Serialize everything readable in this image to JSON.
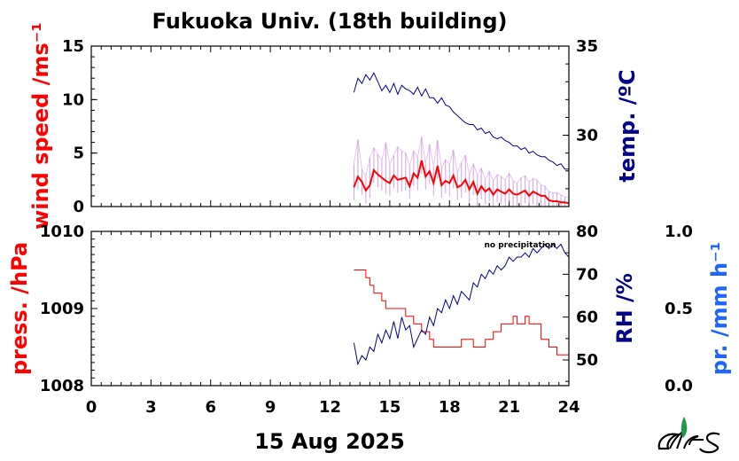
{
  "chart_data": [
    {
      "type": "line",
      "title": "Fukuoka Univ. (18th building)",
      "xlim": [
        0,
        24
      ],
      "x_ticks": [
        "0",
        "3",
        "6",
        "9",
        "12",
        "15",
        "18",
        "21",
        "24"
      ],
      "date_label": "15 Aug 2025",
      "y_left": {
        "label": "wind speed /ms⁻¹",
        "color": "#ff0000",
        "lim": [
          0,
          15
        ],
        "ticks": [
          "0",
          "5",
          "10",
          "15"
        ]
      },
      "y_right": {
        "label": "temp. /ºC",
        "color": "#00008b",
        "lim": [
          26,
          35
        ],
        "ticks": [
          "30",
          "35"
        ]
      },
      "series": [
        {
          "name": "wind speed",
          "axis": "left",
          "color": "#ff0000",
          "x": [
            13.2,
            13.4,
            13.6,
            13.8,
            14.0,
            14.2,
            14.4,
            14.6,
            14.8,
            15.0,
            15.2,
            15.4,
            15.6,
            15.8,
            16.0,
            16.2,
            16.4,
            16.6,
            16.8,
            17.0,
            17.2,
            17.4,
            17.6,
            17.8,
            18.0,
            18.2,
            18.4,
            18.6,
            18.8,
            19.0,
            19.2,
            19.4,
            19.6,
            19.8,
            20.0,
            20.2,
            20.4,
            20.6,
            20.8,
            21.0,
            21.2,
            21.4,
            21.6,
            21.8,
            22.0,
            22.2,
            22.4,
            22.6,
            22.8,
            23.0,
            23.2,
            23.4,
            23.6,
            23.8,
            24.0
          ],
          "y": [
            1.8,
            2.8,
            2.3,
            1.5,
            2.0,
            3.4,
            3.0,
            2.7,
            2.4,
            2.2,
            2.9,
            2.5,
            2.6,
            2.7,
            1.9,
            3.1,
            2.7,
            4.3,
            2.8,
            3.3,
            2.2,
            3.8,
            2.0,
            2.4,
            2.2,
            2.9,
            1.8,
            2.0,
            2.5,
            1.6,
            2.3,
            1.2,
            1.9,
            1.4,
            1.7,
            1.1,
            1.6,
            1.4,
            1.2,
            1.6,
            1.2,
            1.1,
            1.3,
            1.5,
            1.0,
            1.4,
            1.2,
            1.0,
            1.0,
            0.6,
            0.5,
            0.5,
            0.4,
            0.4,
            0.3
          ]
        },
        {
          "name": "wind gust",
          "axis": "left",
          "color": "#cc88dd",
          "x": [
            13.2,
            13.4,
            13.6,
            13.8,
            14.0,
            14.2,
            14.4,
            14.6,
            14.8,
            15.0,
            15.2,
            15.4,
            15.6,
            15.8,
            16.0,
            16.2,
            16.4,
            16.6,
            16.8,
            17.0,
            17.2,
            17.4,
            17.6,
            17.8,
            18.0,
            18.2,
            18.4,
            18.6,
            18.8,
            19.0,
            19.2,
            19.4,
            19.6,
            19.8,
            20.0,
            20.2,
            20.4,
            20.6,
            20.8,
            21.0,
            21.2,
            21.4,
            21.6,
            21.8,
            22.0,
            22.2,
            22.4,
            22.6,
            22.8,
            23.0,
            23.2,
            23.4,
            23.6,
            23.8,
            24.0
          ],
          "y": [
            4.0,
            6.3,
            3.5,
            2.8,
            4.6,
            5.5,
            4.9,
            4.3,
            6.0,
            3.9,
            4.8,
            5.6,
            5.2,
            5.0,
            3.8,
            5.2,
            4.6,
            6.5,
            4.0,
            5.8,
            3.8,
            6.2,
            3.6,
            4.4,
            3.9,
            5.3,
            3.2,
            4.1,
            4.8,
            3.0,
            4.0,
            2.9,
            3.6,
            2.5,
            3.3,
            2.4,
            3.0,
            2.8,
            2.5,
            3.1,
            2.4,
            2.2,
            2.7,
            2.9,
            2.3,
            2.6,
            2.5,
            2.0,
            1.9,
            1.4,
            1.3,
            1.3,
            1.1,
            0.9,
            0.8
          ]
        },
        {
          "name": "temperature",
          "axis": "right",
          "color": "#00008b",
          "x": [
            13.2,
            13.4,
            13.6,
            13.8,
            14.0,
            14.2,
            14.4,
            14.6,
            14.8,
            15.0,
            15.2,
            15.4,
            15.6,
            15.8,
            16.0,
            16.2,
            16.4,
            16.6,
            16.8,
            17.0,
            17.2,
            17.4,
            17.6,
            17.8,
            18.0,
            18.2,
            18.4,
            18.6,
            18.8,
            19.0,
            19.2,
            19.4,
            19.6,
            19.8,
            20.0,
            20.2,
            20.4,
            20.6,
            20.8,
            21.0,
            21.2,
            21.4,
            21.6,
            21.8,
            22.0,
            22.2,
            22.4,
            22.6,
            22.8,
            23.0,
            23.2,
            23.4,
            23.6,
            23.8,
            24.0
          ],
          "y": [
            32.4,
            33.2,
            32.9,
            33.4,
            33.1,
            33.5,
            33.0,
            32.5,
            32.8,
            32.4,
            32.9,
            32.3,
            32.8,
            32.6,
            32.5,
            32.3,
            32.7,
            32.2,
            32.6,
            32.1,
            32.1,
            31.8,
            32.1,
            31.7,
            31.6,
            31.3,
            31.1,
            30.9,
            30.7,
            30.6,
            30.6,
            30.3,
            30.4,
            30.1,
            30.2,
            29.9,
            29.8,
            29.9,
            29.7,
            29.6,
            29.4,
            29.4,
            29.2,
            29.3,
            29.0,
            29.1,
            28.9,
            28.8,
            28.8,
            28.6,
            28.5,
            28.3,
            28.4,
            28.1,
            28.1
          ]
        }
      ]
    },
    {
      "type": "line",
      "xlim": [
        0,
        24
      ],
      "annotation": "no precipitation",
      "y_left": {
        "label": "press. /hPa",
        "color": "#ff0000",
        "lim": [
          1008,
          1010
        ],
        "ticks": [
          "1008",
          "1009",
          "1010"
        ]
      },
      "y_right": {
        "label": "RH /%",
        "color": "#00008b",
        "lim": [
          44,
          80
        ],
        "ticks": [
          "50",
          "60",
          "70",
          "80"
        ]
      },
      "y_right2": {
        "label": "pr. /mm h⁻¹",
        "color": "#1e64ff",
        "lim": [
          0.0,
          1.0
        ],
        "ticks": [
          "0.0",
          "0.5",
          "1.0"
        ]
      },
      "series": [
        {
          "name": "pressure",
          "axis": "left",
          "color": "#ff0000",
          "x": [
            13.2,
            13.6,
            13.8,
            14.0,
            14.2,
            14.6,
            14.8,
            15.4,
            15.8,
            16.2,
            16.6,
            17.0,
            17.2,
            17.8,
            18.6,
            19.2,
            19.8,
            20.2,
            20.6,
            20.8,
            21.2,
            21.4,
            21.8,
            22.0,
            22.4,
            22.6,
            23.0,
            23.4,
            23.8,
            24.0
          ],
          "y": [
            1009.5,
            1009.5,
            1009.4,
            1009.3,
            1009.2,
            1009.1,
            1009.0,
            1009.0,
            1008.9,
            1008.8,
            1008.7,
            1008.6,
            1008.5,
            1008.5,
            1008.6,
            1008.5,
            1008.6,
            1008.7,
            1008.8,
            1008.8,
            1008.9,
            1008.8,
            1008.9,
            1008.8,
            1008.8,
            1008.6,
            1008.5,
            1008.4,
            1008.4,
            1008.4
          ]
        },
        {
          "name": "relative humidity",
          "axis": "right",
          "color": "#00008b",
          "x": [
            13.2,
            13.4,
            13.6,
            13.8,
            14.0,
            14.2,
            14.4,
            14.6,
            14.8,
            15.0,
            15.2,
            15.4,
            15.6,
            15.8,
            16.0,
            16.2,
            16.4,
            16.6,
            16.8,
            17.0,
            17.2,
            17.4,
            17.6,
            17.8,
            18.0,
            18.2,
            18.4,
            18.6,
            18.8,
            19.0,
            19.2,
            19.4,
            19.6,
            19.8,
            20.0,
            20.2,
            20.4,
            20.6,
            20.8,
            21.0,
            21.2,
            21.4,
            21.6,
            21.8,
            22.0,
            22.2,
            22.4,
            22.6,
            22.8,
            23.0,
            23.2,
            23.4,
            23.6,
            23.8,
            24.0
          ],
          "y": [
            54,
            49,
            51,
            50,
            53,
            52,
            56,
            54,
            57,
            55,
            59,
            55,
            60,
            57,
            58,
            53,
            55,
            57,
            56,
            60,
            58,
            62,
            61,
            64,
            62,
            65,
            63,
            66,
            65,
            64,
            68,
            67,
            70,
            69,
            71,
            70,
            72,
            71,
            72,
            74,
            73,
            74,
            74,
            75,
            74,
            76,
            75,
            76,
            77,
            76,
            77,
            76,
            77,
            75,
            74
          ]
        }
      ]
    }
  ]
}
